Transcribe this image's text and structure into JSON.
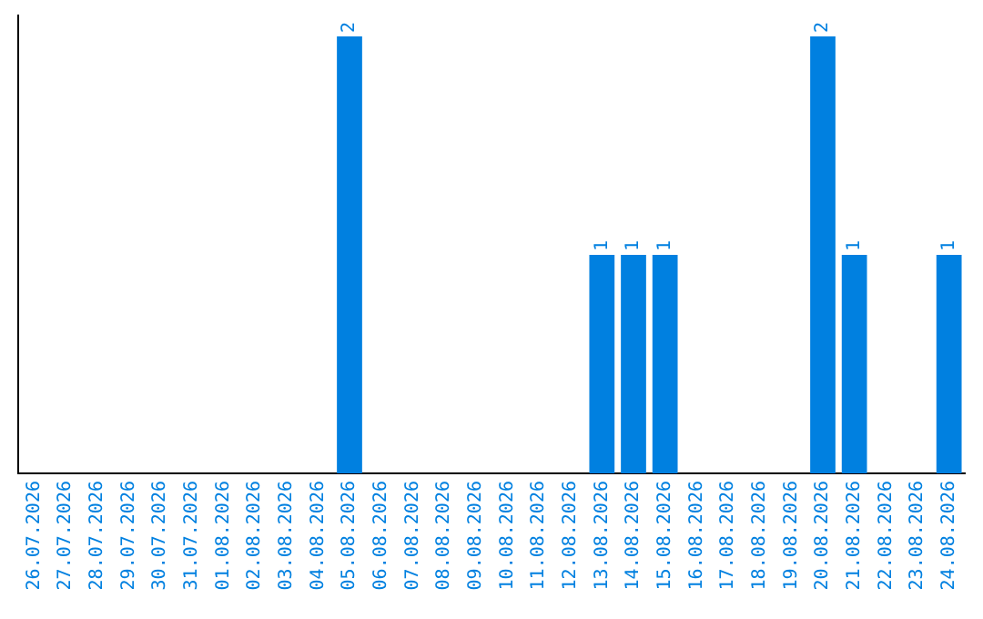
{
  "chart_data": {
    "type": "bar",
    "categories": [
      "26.07.2026",
      "27.07.2026",
      "28.07.2026",
      "29.07.2026",
      "30.07.2026",
      "31.07.2026",
      "01.08.2026",
      "02.08.2026",
      "03.08.2026",
      "04.08.2026",
      "05.08.2026",
      "06.08.2026",
      "07.08.2026",
      "08.08.2026",
      "09.08.2026",
      "10.08.2026",
      "11.08.2026",
      "12.08.2026",
      "13.08.2026",
      "14.08.2026",
      "15.08.2026",
      "16.08.2026",
      "17.08.2026",
      "18.08.2026",
      "19.08.2026",
      "20.08.2026",
      "21.08.2026",
      "22.08.2026",
      "23.08.2026",
      "24.08.2026"
    ],
    "values": [
      0,
      0,
      0,
      0,
      0,
      0,
      0,
      0,
      0,
      0,
      2,
      0,
      0,
      0,
      0,
      0,
      0,
      0,
      1,
      1,
      1,
      0,
      0,
      0,
      0,
      2,
      1,
      0,
      0,
      1
    ],
    "value_labels": [
      null,
      null,
      null,
      null,
      null,
      null,
      null,
      null,
      null,
      null,
      "2",
      null,
      null,
      null,
      null,
      null,
      null,
      null,
      "1",
      "1",
      "1",
      null,
      null,
      null,
      null,
      "2",
      "1",
      null,
      null,
      "1"
    ],
    "color": "#0080e0",
    "tick_labels": "x",
    "grid": false,
    "legend": false
  }
}
